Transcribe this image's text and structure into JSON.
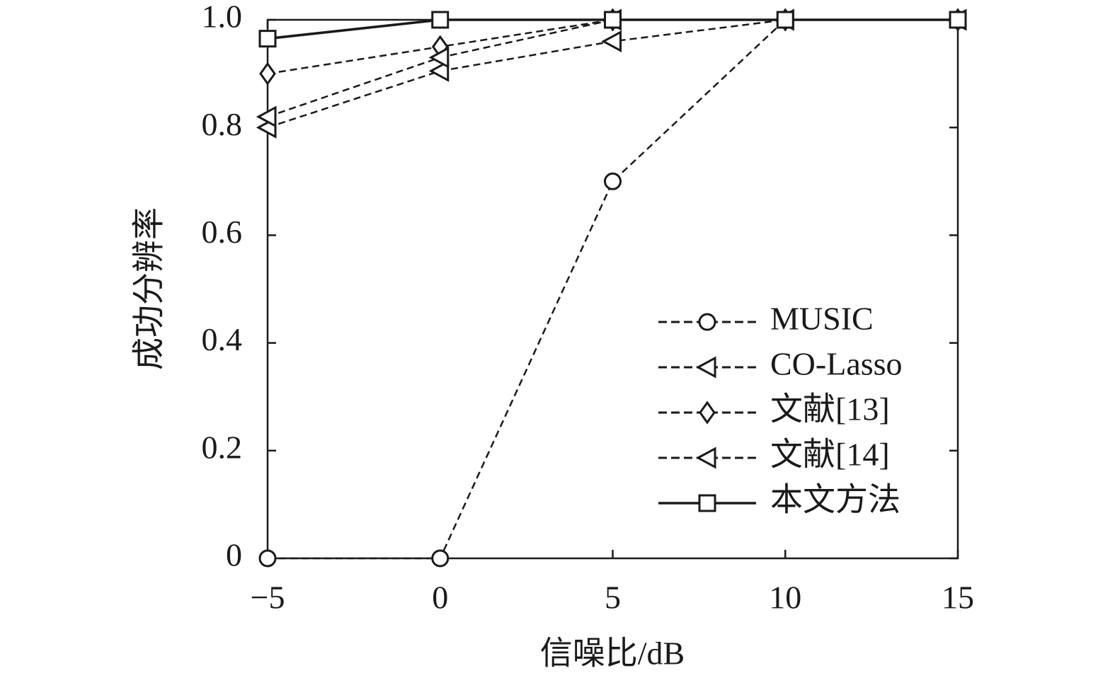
{
  "chart_data": {
    "type": "line",
    "x_label": "信噪比/dB",
    "y_label": "成功分辨率",
    "x": [
      -5,
      0,
      5,
      10,
      15
    ],
    "series": [
      {
        "name": "MUSIC",
        "color": "#1a1a1a",
        "marker": "circle",
        "dashed": true,
        "values": [
          0,
          0,
          0.7,
          1,
          1
        ]
      },
      {
        "name": "CO-Lasso",
        "color": "#1a1a1a",
        "marker": "triangle-left",
        "dashed": true,
        "values": [
          0.8,
          0.905,
          0.96,
          1,
          1
        ]
      },
      {
        "name": "文献[13]",
        "color": "#1a1a1a",
        "marker": "diamond",
        "dashed": true,
        "values": [
          0.9,
          0.95,
          1,
          1,
          1
        ]
      },
      {
        "name": "文献[14]",
        "color": "#1a1a1a",
        "marker": "triangle-left",
        "dashed": true,
        "values": [
          0.82,
          0.93,
          1,
          1,
          1
        ]
      },
      {
        "name": "本文方法",
        "color": "#1a1a1a",
        "marker": "square",
        "dashed": false,
        "values": [
          0.965,
          1,
          1,
          1,
          1
        ]
      }
    ],
    "xlim": [
      -5,
      15
    ],
    "ylim": [
      0,
      1
    ],
    "xticks": [
      {
        "value": -5,
        "label": "−5"
      },
      0,
      5,
      10,
      15
    ],
    "yticks": [
      0,
      0.2,
      0.4,
      0.6,
      0.8,
      {
        "value": 1,
        "label": "1.0"
      }
    ],
    "grid": false,
    "legend": "lower right"
  }
}
